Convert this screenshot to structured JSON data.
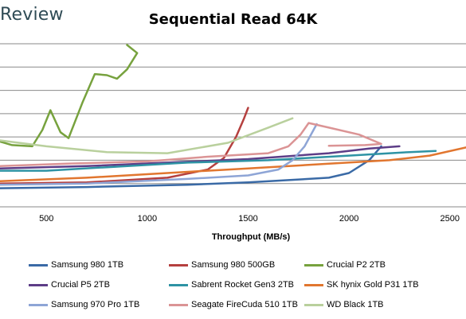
{
  "brand": "Review",
  "chart_data": {
    "type": "line",
    "title": "Sequential Read 64K",
    "xlabel": "Throughput (MB/s)",
    "ylabel": "",
    "xlim": [
      270,
      2580
    ],
    "ylim": [
      0,
      7
    ],
    "xticks": [
      500,
      1000,
      1500,
      2000,
      2500
    ],
    "grid": "horizontal",
    "legend_position": "bottom",
    "series": [
      {
        "name": "Samsung 980 1TB",
        "color": "#3a6aa6",
        "points": [
          [
            270,
            0.8
          ],
          [
            700,
            0.85
          ],
          [
            1200,
            0.95
          ],
          [
            1500,
            1.05
          ],
          [
            1900,
            1.25
          ],
          [
            2000,
            1.45
          ],
          [
            2100,
            2.0
          ],
          [
            2160,
            2.6
          ]
        ]
      },
      {
        "name": "Samsung 980 500GB",
        "color": "#b5403f",
        "points": [
          [
            270,
            1.0
          ],
          [
            700,
            1.05
          ],
          [
            1100,
            1.25
          ],
          [
            1300,
            1.6
          ],
          [
            1380,
            2.1
          ],
          [
            1440,
            3.0
          ],
          [
            1480,
            3.8
          ],
          [
            1500,
            4.25
          ]
        ]
      },
      {
        "name": "Crucial P2 2TB",
        "color": "#77a23e",
        "points": [
          [
            270,
            2.8
          ],
          [
            330,
            2.65
          ],
          [
            430,
            2.6
          ],
          [
            480,
            3.3
          ],
          [
            520,
            4.15
          ],
          [
            570,
            3.2
          ],
          [
            610,
            2.95
          ],
          [
            680,
            4.5
          ],
          [
            740,
            5.7
          ],
          [
            800,
            5.65
          ],
          [
            850,
            5.5
          ],
          [
            900,
            5.9
          ],
          [
            950,
            6.6
          ],
          [
            900,
            6.95
          ]
        ]
      },
      {
        "name": "Crucial P5 2TB",
        "color": "#5d3d87",
        "points": [
          [
            270,
            1.65
          ],
          [
            700,
            1.75
          ],
          [
            1100,
            1.9
          ],
          [
            1500,
            2.05
          ],
          [
            1900,
            2.3
          ],
          [
            2100,
            2.5
          ],
          [
            2250,
            2.6
          ]
        ]
      },
      {
        "name": "Sabrent Rocket Gen3 2TB",
        "color": "#2e93a4",
        "points": [
          [
            270,
            1.55
          ],
          [
            500,
            1.55
          ],
          [
            800,
            1.7
          ],
          [
            1200,
            1.9
          ],
          [
            1600,
            2.0
          ],
          [
            2000,
            2.2
          ],
          [
            2300,
            2.35
          ],
          [
            2430,
            2.4
          ]
        ]
      },
      {
        "name": "SK hynix Gold P31 1TB",
        "color": "#e1762f",
        "points": [
          [
            270,
            1.1
          ],
          [
            700,
            1.25
          ],
          [
            1100,
            1.45
          ],
          [
            1500,
            1.65
          ],
          [
            1900,
            1.85
          ],
          [
            2200,
            2.0
          ],
          [
            2400,
            2.2
          ],
          [
            2580,
            2.55
          ]
        ]
      },
      {
        "name": "Samsung 970 Pro 1TB",
        "color": "#8ea5d6",
        "points": [
          [
            270,
            0.95
          ],
          [
            700,
            1.0
          ],
          [
            1200,
            1.2
          ],
          [
            1500,
            1.35
          ],
          [
            1650,
            1.6
          ],
          [
            1720,
            2.0
          ],
          [
            1780,
            2.6
          ],
          [
            1840,
            3.55
          ]
        ]
      },
      {
        "name": "Seagate FireCuda 510 1TB",
        "color": "#db9495",
        "points": [
          [
            270,
            1.75
          ],
          [
            600,
            1.85
          ],
          [
            1000,
            1.95
          ],
          [
            1300,
            2.15
          ],
          [
            1600,
            2.3
          ],
          [
            1700,
            2.6
          ],
          [
            1760,
            3.1
          ],
          [
            1800,
            3.6
          ],
          [
            1900,
            3.4
          ],
          [
            2050,
            3.1
          ],
          [
            2160,
            2.7
          ],
          [
            2080,
            2.65
          ],
          [
            1900,
            2.62
          ]
        ]
      },
      {
        "name": "WD Black 1TB",
        "color": "#b9d09d",
        "points": [
          [
            270,
            2.85
          ],
          [
            500,
            2.6
          ],
          [
            800,
            2.35
          ],
          [
            1100,
            2.3
          ],
          [
            1400,
            2.75
          ],
          [
            1600,
            3.4
          ],
          [
            1720,
            3.8
          ]
        ]
      }
    ]
  }
}
